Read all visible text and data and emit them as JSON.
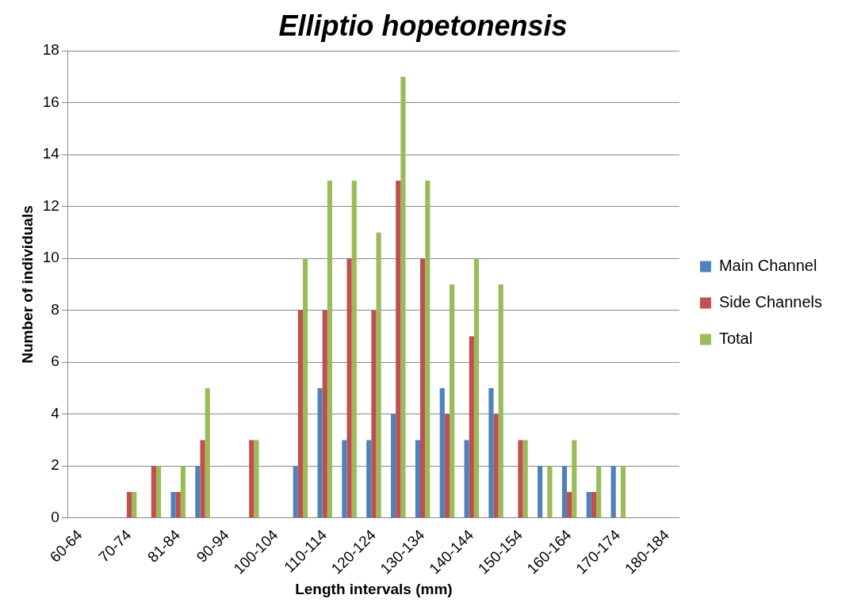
{
  "chart_data": {
    "type": "bar",
    "title": "Elliptio hopetonensis",
    "xlabel": "Length intervals (mm)",
    "ylabel": "Number of individuals",
    "categories": [
      "60-64",
      null,
      "70-74",
      null,
      "81-84",
      null,
      "90-94",
      null,
      "100-104",
      null,
      "110-114",
      null,
      "120-124",
      null,
      "130-134",
      null,
      "140-144",
      null,
      "150-154",
      null,
      "160-164",
      null,
      "170-174",
      null,
      "180-184"
    ],
    "series": [
      {
        "name": "Main Channel",
        "color": "#4f81bd",
        "values": [
          0,
          0,
          0,
          0,
          1,
          2,
          0,
          0,
          0,
          2,
          5,
          3,
          3,
          4,
          3,
          5,
          3,
          5,
          0,
          2,
          2,
          1,
          2,
          0,
          0
        ]
      },
      {
        "name": "Side Channels",
        "color": "#c0504d",
        "values": [
          0,
          0,
          1,
          2,
          1,
          3,
          0,
          3,
          0,
          8,
          8,
          10,
          8,
          13,
          10,
          4,
          7,
          4,
          3,
          0,
          1,
          1,
          0,
          0,
          0
        ]
      },
      {
        "name": "Total",
        "color": "#9bbb59",
        "values": [
          0,
          0,
          1,
          2,
          2,
          5,
          0,
          3,
          0,
          10,
          13,
          13,
          11,
          17,
          13,
          9,
          10,
          9,
          3,
          2,
          3,
          2,
          2,
          0,
          0
        ]
      }
    ],
    "ylim": [
      0,
      18
    ],
    "yticks": [
      0,
      2,
      4,
      6,
      8,
      10,
      12,
      14,
      16,
      18
    ],
    "grid": "y",
    "legend": "right"
  }
}
